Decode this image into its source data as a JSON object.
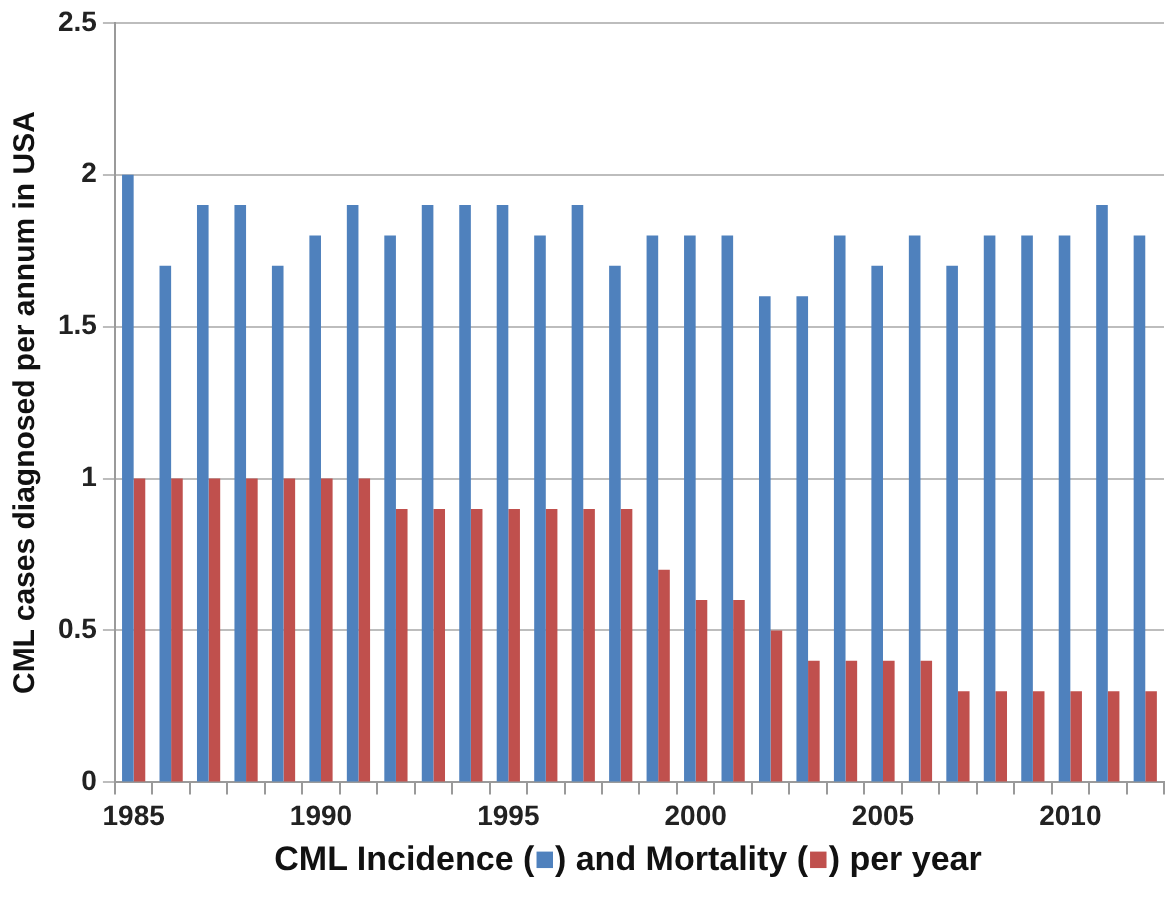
{
  "chart_data": {
    "type": "bar",
    "ylabel": "CML cases diagnosed per annum in USA",
    "xlabel": "CML Incidence (■) and Mortality (■) per year",
    "categories": [
      "1985",
      null,
      null,
      null,
      null,
      "1990",
      null,
      null,
      null,
      null,
      "1995",
      null,
      null,
      null,
      null,
      "2000",
      null,
      null,
      null,
      null,
      "2005",
      null,
      null,
      null,
      null,
      "2010",
      null,
      null
    ],
    "series": [
      {
        "color": "#4f81bd",
        "values": [
          2,
          1.7,
          1.9,
          1.9,
          1.7,
          1.8,
          1.9,
          1.8,
          1.9,
          1.9,
          1.9,
          1.8,
          1.9,
          1.7,
          1.8,
          1.8,
          1.8,
          1.6,
          1.6,
          1.8,
          1.7,
          1.8,
          1.7,
          1.8,
          1.8,
          1.8,
          1.9,
          1.8
        ]
      },
      {
        "color": "#c0504d",
        "values": [
          1,
          1,
          1,
          1,
          1,
          1,
          1,
          0.9,
          0.9,
          0.9,
          0.9,
          0.9,
          0.9,
          0.9,
          0.7,
          0.6,
          0.6,
          0.5,
          0.4,
          0.4,
          0.4,
          0.4,
          0.3,
          0.3,
          0.3,
          0.3,
          0.3,
          0.3
        ]
      }
    ],
    "ylim": [
      0,
      2.5
    ],
    "yticks": [
      0,
      0.5,
      1,
      1.5,
      2,
      2.5
    ],
    "grid": "y",
    "legend": false
  }
}
